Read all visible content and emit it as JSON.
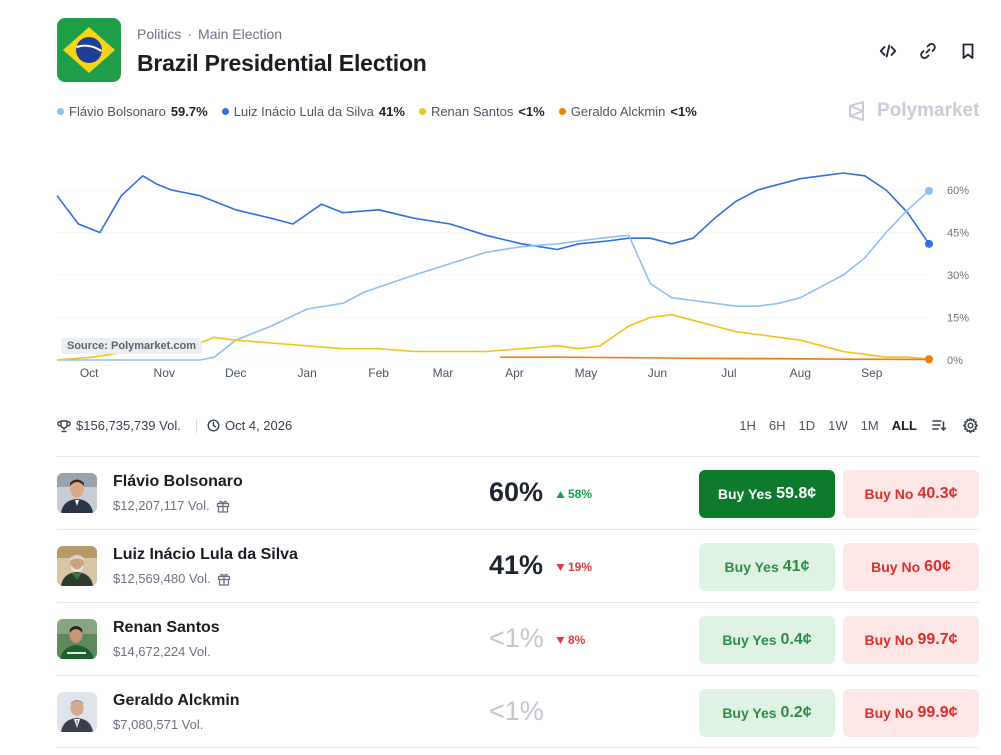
{
  "breadcrumb": {
    "category": "Politics",
    "separator": "·",
    "subcategory": "Main Election"
  },
  "title": "Brazil Presidential Election",
  "brand": {
    "name": "Polymarket"
  },
  "header_icons": [
    "embed-code-icon",
    "link-icon",
    "bookmark-icon"
  ],
  "legend": [
    {
      "name": "Flávio Bolsonaro",
      "pct": "59.7%",
      "color": "#8ec1f2"
    },
    {
      "name": "Luiz Inácio Lula da Silva",
      "pct": "41%",
      "color": "#2f6fe0"
    },
    {
      "name": "Renan Santos",
      "pct": "<1%",
      "color": "#f2c21a"
    },
    {
      "name": "Geraldo Alckmin",
      "pct": "<1%",
      "color": "#f07d0e"
    }
  ],
  "chart": {
    "source": "Source: Polymarket.com"
  },
  "chart_data": {
    "type": "line",
    "x_ticks": [
      "Oct",
      "Nov",
      "Dec",
      "Jan",
      "Feb",
      "Mar",
      "Apr",
      "May",
      "Jun",
      "Jul",
      "Aug",
      "Sep"
    ],
    "y_ticks": [
      "60%",
      "45%",
      "30%",
      "15%",
      "0%"
    ],
    "ylim": [
      0,
      60
    ],
    "grid": true,
    "series": [
      {
        "name": "Luiz Inácio Lula da Silva",
        "color": "#2f6fe0",
        "x": [
          0,
          0.3,
          0.6,
          0.9,
          1.2,
          1.4,
          1.6,
          2.0,
          2.5,
          3.0,
          3.3,
          3.7,
          4.0,
          4.5,
          5.0,
          5.5,
          6.0,
          6.5,
          7.0,
          7.3,
          7.7,
          8.0,
          8.3,
          8.6,
          8.9,
          9.2,
          9.5,
          9.8,
          10.1,
          10.4,
          10.7,
          11.0,
          11.3,
          11.6,
          11.9,
          12.2
        ],
        "values": [
          58,
          48,
          45,
          58,
          65,
          62,
          60,
          58,
          53,
          50,
          48,
          55,
          52,
          53,
          50,
          48,
          44,
          41,
          39,
          41,
          42,
          43,
          43,
          41,
          43,
          50,
          56,
          60,
          62,
          64,
          65,
          66,
          65,
          60,
          52,
          41
        ]
      },
      {
        "name": "Flávio Bolsonaro",
        "color": "#8ec1f2",
        "x": [
          0,
          1.0,
          2.0,
          2.2,
          2.5,
          3.0,
          3.5,
          4.0,
          4.3,
          5.0,
          5.5,
          6.0,
          6.5,
          7.0,
          7.3,
          7.6,
          8.0,
          8.3,
          8.6,
          8.9,
          9.2,
          9.5,
          9.8,
          10.1,
          10.4,
          10.7,
          11.0,
          11.3,
          11.6,
          11.9,
          12.2
        ],
        "values": [
          0,
          0,
          0,
          1,
          7,
          12,
          18,
          20,
          24,
          30,
          34,
          38,
          40,
          41,
          42,
          43,
          44,
          27,
          22,
          21,
          20,
          19,
          19,
          20,
          22,
          26,
          30,
          36,
          45,
          53,
          59.7
        ]
      },
      {
        "name": "Renan Santos",
        "color": "#f2c21a",
        "x": [
          0,
          0.5,
          1.0,
          1.5,
          2.0,
          2.2,
          2.5,
          3.0,
          3.5,
          4.0,
          4.5,
          5.0,
          5.5,
          6.0,
          6.5,
          7.0,
          7.3,
          7.6,
          8.0,
          8.3,
          8.6,
          8.9,
          9.2,
          9.5,
          9.8,
          10.1,
          10.4,
          10.7,
          11.0,
          11.3,
          11.6,
          11.9,
          12.2
        ],
        "values": [
          0,
          1,
          3,
          5,
          6,
          8,
          7,
          6,
          5,
          4,
          4,
          3,
          3,
          3,
          4,
          5,
          4,
          5,
          12,
          15,
          16,
          14,
          12,
          10,
          9,
          8,
          7,
          5,
          3,
          2,
          1,
          1,
          0.4
        ]
      },
      {
        "name": "Geraldo Alckmin",
        "color": "#f07d0e",
        "x": [
          6.2,
          7.0,
          8.0,
          9.0,
          10.0,
          11.0,
          12.2
        ],
        "values": [
          1,
          1,
          0.8,
          0.6,
          0.5,
          0.3,
          0.2
        ]
      }
    ]
  },
  "stats": {
    "volume": "$156,735,739 Vol.",
    "end_date": "Oct 4, 2026"
  },
  "ranges": [
    "1H",
    "6H",
    "1D",
    "1W",
    "1M",
    "ALL"
  ],
  "active_range": "ALL",
  "candidates": [
    {
      "name": "Flávio Bolsonaro",
      "volume": "$12,207,117 Vol.",
      "gift": true,
      "pct": "60%",
      "pct_faded": false,
      "change": "58%",
      "direction": "up",
      "yes_label": "Buy Yes",
      "yes_price": "59.8¢",
      "yes_solid": true,
      "no_label": "Buy No",
      "no_price": "40.3¢"
    },
    {
      "name": "Luiz Inácio Lula da Silva",
      "volume": "$12,569,480 Vol.",
      "gift": true,
      "pct": "41%",
      "pct_faded": false,
      "change": "19%",
      "direction": "down",
      "yes_label": "Buy Yes",
      "yes_price": "41¢",
      "yes_solid": false,
      "no_label": "Buy No",
      "no_price": "60¢"
    },
    {
      "name": "Renan Santos",
      "volume": "$14,672,224 Vol.",
      "gift": false,
      "pct": "<1%",
      "pct_faded": true,
      "change": "8%",
      "direction": "down",
      "yes_label": "Buy Yes",
      "yes_price": "0.4¢",
      "yes_solid": false,
      "no_label": "Buy No",
      "no_price": "99.7¢"
    },
    {
      "name": "Geraldo Alckmin",
      "volume": "$7,080,571 Vol.",
      "gift": false,
      "pct": "<1%",
      "pct_faded": true,
      "change": "",
      "direction": "",
      "yes_label": "Buy Yes",
      "yes_price": "0.2¢",
      "yes_solid": false,
      "no_label": "Buy No",
      "no_price": "99.9¢"
    }
  ]
}
